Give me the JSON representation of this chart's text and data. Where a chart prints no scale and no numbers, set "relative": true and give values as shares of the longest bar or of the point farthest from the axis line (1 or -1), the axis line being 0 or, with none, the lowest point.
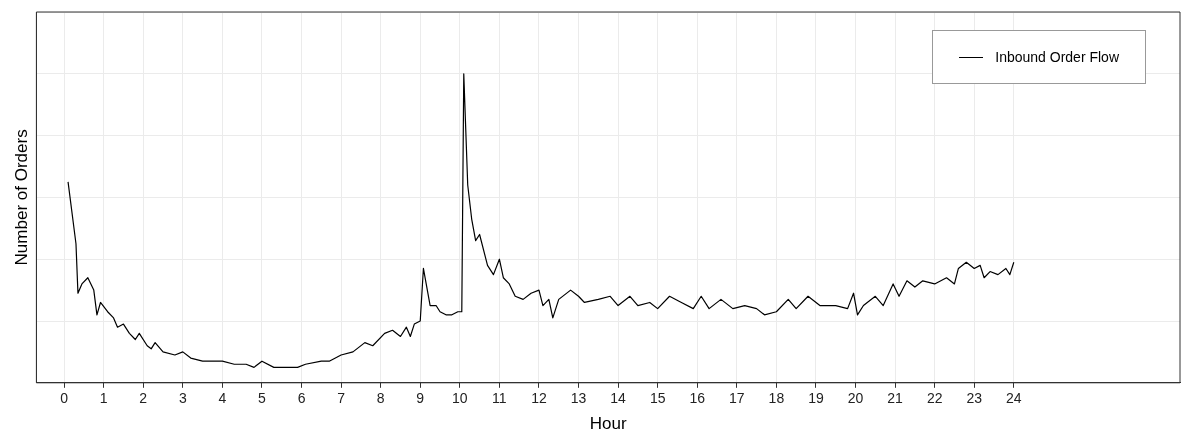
{
  "chart_data": {
    "type": "line",
    "xlabel": "Hour",
    "ylabel": "Number of Orders",
    "relative": true,
    "xlim": [
      -0.7,
      28.2
    ],
    "xticks": [
      0,
      1,
      2,
      3,
      4,
      5,
      6,
      7,
      8,
      9,
      10,
      11,
      12,
      13,
      14,
      15,
      16,
      17,
      18,
      19,
      20,
      21,
      22,
      23,
      24
    ],
    "grid": true,
    "legend": "top right",
    "marker": "none",
    "line_style": "solid",
    "x": [
      0.1,
      0.3,
      0.35,
      0.45,
      0.6,
      0.75,
      0.83,
      0.92,
      1.1,
      1.25,
      1.35,
      1.5,
      1.65,
      1.8,
      1.9,
      2.1,
      2.2,
      2.3,
      2.5,
      2.8,
      3.0,
      3.2,
      3.5,
      3.8,
      4.0,
      4.3,
      4.6,
      4.8,
      5.0,
      5.3,
      5.6,
      5.9,
      6.1,
      6.5,
      6.7,
      7.0,
      7.3,
      7.6,
      7.8,
      8.1,
      8.3,
      8.5,
      8.65,
      8.75,
      8.85,
      9.0,
      9.08,
      9.25,
      9.4,
      9.5,
      9.65,
      9.8,
      9.95,
      10.05,
      10.1,
      10.2,
      10.3,
      10.4,
      10.5,
      10.7,
      10.85,
      11.0,
      11.1,
      11.25,
      11.4,
      11.6,
      11.8,
      12.0,
      12.1,
      12.25,
      12.35,
      12.5,
      12.8,
      13.0,
      13.15,
      13.5,
      13.8,
      14.0,
      14.3,
      14.5,
      14.8,
      15.0,
      15.3,
      15.6,
      15.9,
      16.1,
      16.3,
      16.6,
      16.9,
      17.2,
      17.5,
      17.7,
      18.0,
      18.3,
      18.5,
      18.8,
      19.1,
      19.5,
      19.8,
      19.95,
      20.05,
      20.2,
      20.5,
      20.7,
      20.95,
      21.1,
      21.3,
      21.5,
      21.7,
      22.0,
      22.3,
      22.5,
      22.6,
      22.8,
      23.0,
      23.15,
      23.25,
      23.4,
      23.6,
      23.8,
      23.9,
      24.0
    ],
    "series": [
      {
        "name": "Inbound Order Flow",
        "color": "#000000",
        "values": [
          0.65,
          0.45,
          0.29,
          0.32,
          0.34,
          0.3,
          0.22,
          0.26,
          0.23,
          0.21,
          0.18,
          0.19,
          0.16,
          0.14,
          0.16,
          0.12,
          0.11,
          0.13,
          0.1,
          0.09,
          0.1,
          0.08,
          0.07,
          0.07,
          0.07,
          0.06,
          0.06,
          0.05,
          0.07,
          0.05,
          0.05,
          0.05,
          0.06,
          0.07,
          0.07,
          0.09,
          0.1,
          0.13,
          0.12,
          0.16,
          0.17,
          0.15,
          0.18,
          0.15,
          0.19,
          0.2,
          0.37,
          0.25,
          0.25,
          0.23,
          0.22,
          0.22,
          0.23,
          0.23,
          1,
          0.64,
          0.53,
          0.46,
          0.48,
          0.38,
          0.35,
          0.4,
          0.34,
          0.32,
          0.28,
          0.27,
          0.29,
          0.3,
          0.25,
          0.27,
          0.21,
          0.27,
          0.3,
          0.28,
          0.26,
          0.27,
          0.28,
          0.25,
          0.28,
          0.25,
          0.26,
          0.24,
          0.28,
          0.26,
          0.24,
          0.28,
          0.24,
          0.27,
          0.24,
          0.25,
          0.24,
          0.22,
          0.23,
          0.27,
          0.24,
          0.28,
          0.25,
          0.25,
          0.24,
          0.29,
          0.22,
          0.25,
          0.28,
          0.25,
          0.32,
          0.28,
          0.33,
          0.31,
          0.33,
          0.32,
          0.34,
          0.32,
          0.37,
          0.39,
          0.37,
          0.38,
          0.34,
          0.36,
          0.35,
          0.37,
          0.35,
          0.39
        ]
      }
    ]
  }
}
